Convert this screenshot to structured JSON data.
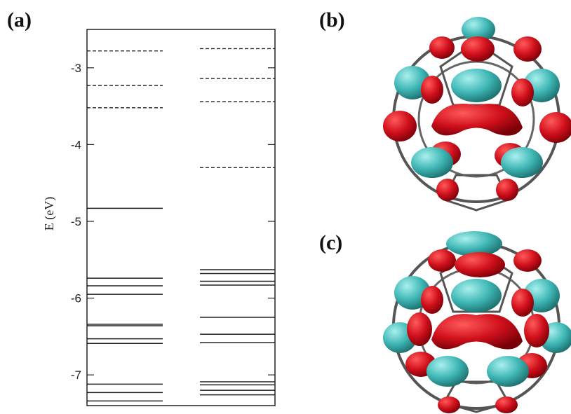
{
  "panels": {
    "a": "(a)",
    "b": "(b)",
    "c": "(c)"
  },
  "chart_data": {
    "type": "energy-level diagram",
    "ylabel": "E (eV)",
    "ylim": [
      -7.4,
      -2.5
    ],
    "yticks": [
      -7,
      -6,
      -5,
      -4,
      -3
    ],
    "ytick_labels": [
      "-7",
      "-6",
      "-5",
      "-4",
      "-3"
    ],
    "grid": false,
    "columns": [
      {
        "occupied": [
          -4.83,
          -5.74,
          -5.84,
          -5.95,
          -6.34,
          -6.36,
          -6.53,
          -6.59,
          -7.12,
          -7.23,
          -7.34
        ],
        "unoccupied": [
          -2.78,
          -3.23,
          -3.52
        ]
      },
      {
        "occupied": [
          -5.63,
          -5.68,
          -5.78,
          -5.83,
          -6.25,
          -6.47,
          -6.58,
          -7.09,
          -7.13,
          -7.2,
          -7.26
        ],
        "unoccupied": [
          -2.75,
          -3.14,
          -3.44,
          -4.3
        ]
      }
    ],
    "colors": {
      "line": "#222222",
      "isosurface_red": "#d0101c",
      "isosurface_teal": "#3fb7b5",
      "bonds": "#555555"
    }
  }
}
